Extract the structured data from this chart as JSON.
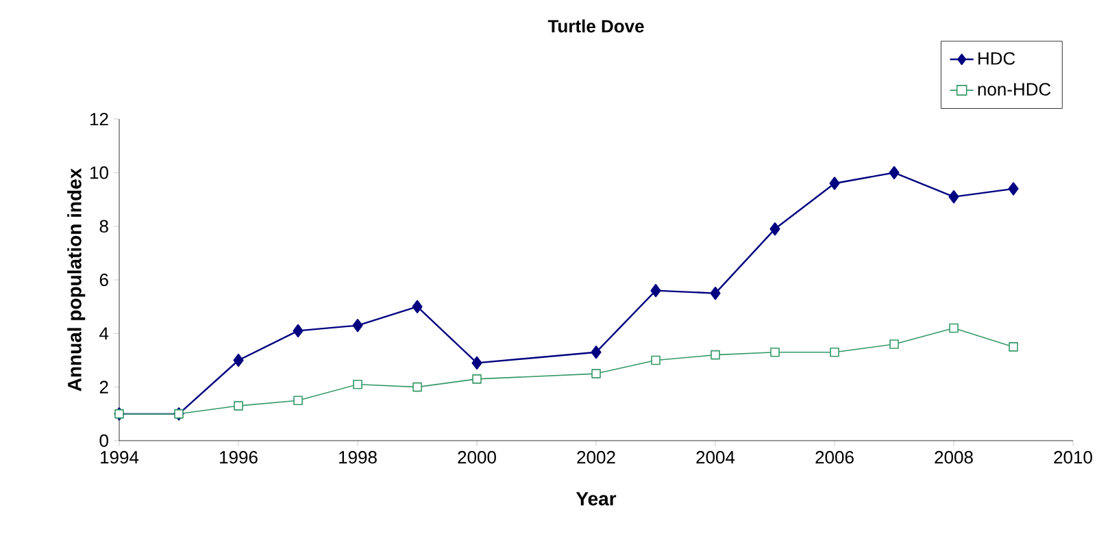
{
  "chart_data": {
    "type": "line",
    "title": "Turtle Dove",
    "xlabel": "Year",
    "ylabel": "Annual population index",
    "x": [
      1994,
      1995,
      1996,
      1997,
      1998,
      1999,
      2000,
      2002,
      2003,
      2004,
      2005,
      2006,
      2007,
      2008,
      2009
    ],
    "series": [
      {
        "name": "HDC",
        "color": "#000080",
        "marker": "diamond",
        "values": [
          1,
          1,
          3.0,
          4.1,
          4.3,
          5.0,
          2.9,
          3.3,
          5.6,
          5.5,
          7.9,
          9.6,
          10.0,
          9.1,
          9.4
        ]
      },
      {
        "name": "non-HDC",
        "color": "#339966",
        "marker": "square",
        "values": [
          1,
          1,
          1.3,
          1.5,
          2.1,
          2.0,
          2.3,
          2.5,
          3.0,
          3.2,
          3.3,
          3.3,
          3.6,
          4.2,
          3.5
        ]
      }
    ],
    "xlim": [
      1994,
      2010
    ],
    "xticks": [
      1994,
      1996,
      1998,
      2000,
      2002,
      2004,
      2006,
      2008,
      2010
    ],
    "ylim": [
      0,
      12
    ],
    "yticks": [
      0,
      2,
      4,
      6,
      8,
      10,
      12
    ],
    "grid": false,
    "legend": "top right",
    "line_style": "solid"
  }
}
